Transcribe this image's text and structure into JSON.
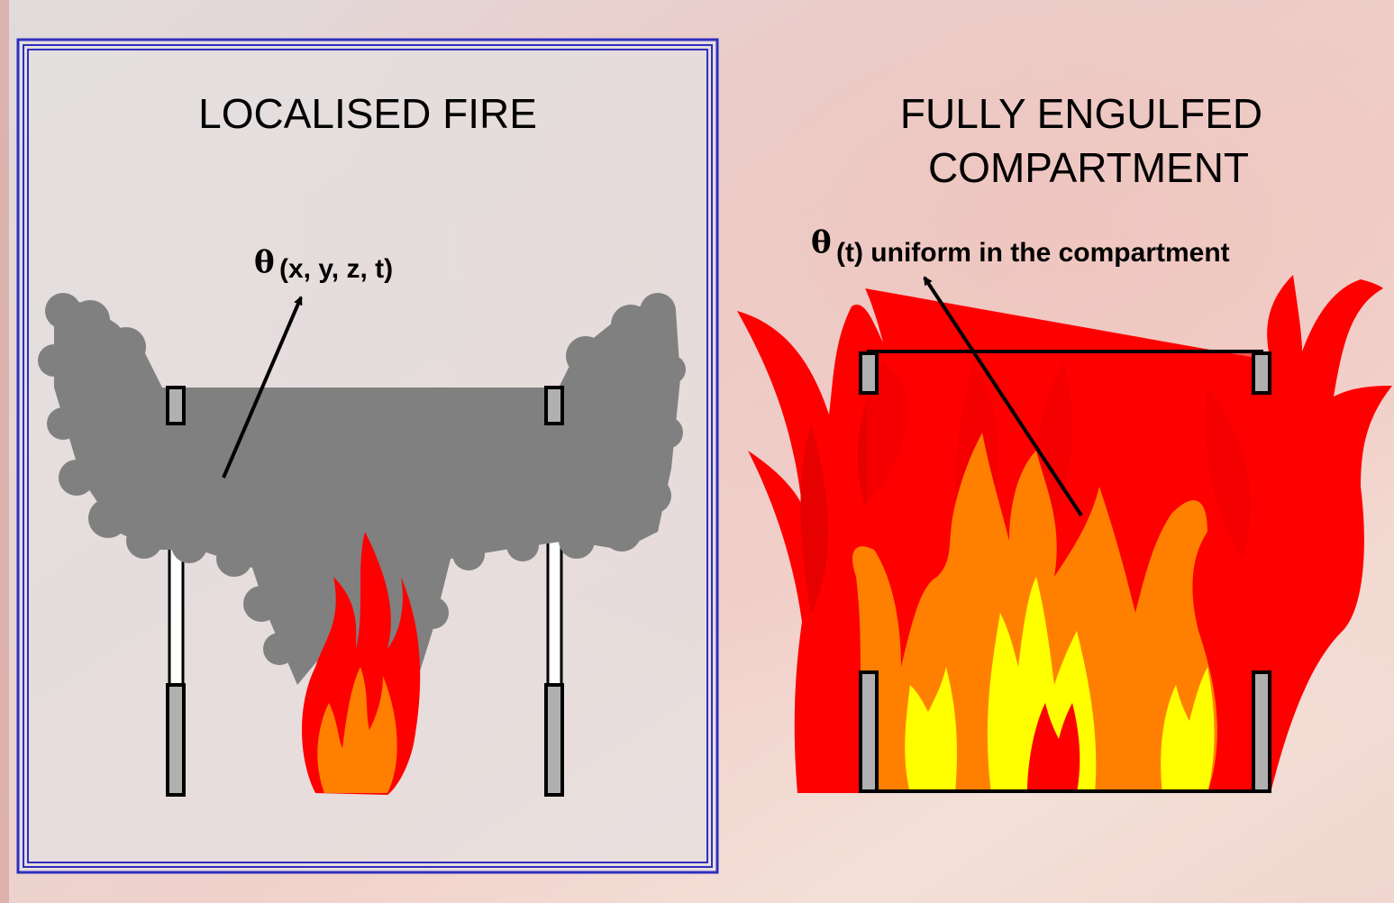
{
  "left_panel": {
    "title": "LOCALISED FIRE",
    "symbol": "θ",
    "annotation": "(x, y, z, t)"
  },
  "right_panel": {
    "title": [
      "FULLY ENGULFED",
      "COMPARTMENT"
    ],
    "symbol": "θ",
    "annotation": "(t) uniform in the compartment"
  }
}
